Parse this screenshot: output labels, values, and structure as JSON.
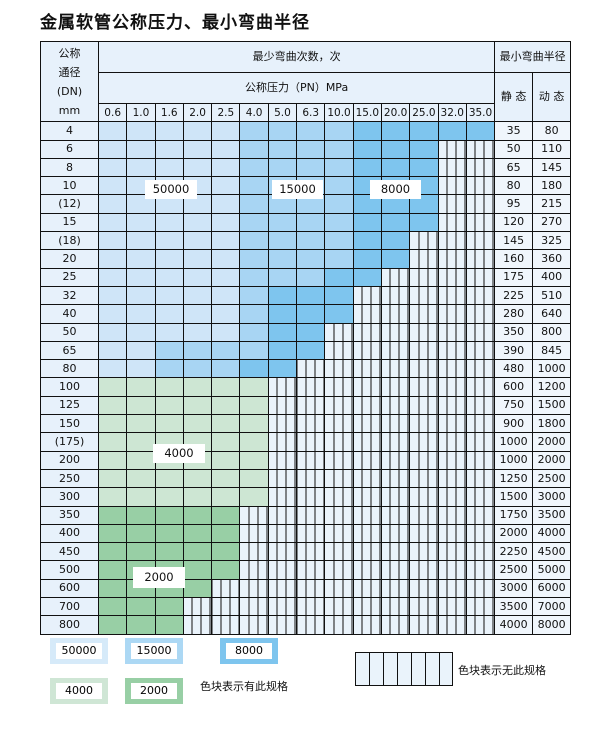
{
  "title": "金属软管公称压力、最小弯曲半径",
  "header": {
    "dn_lines": [
      "公称",
      "通径",
      "(DN)",
      "mm"
    ],
    "bend_count": "最少弯曲次数，次",
    "pressure": "公称压力（PN）MPa",
    "radius": "最小弯曲半径",
    "static": "静 态",
    "dynamic": "动 态",
    "pressures": [
      "0.6",
      "1.0",
      "1.6",
      "2.0",
      "2.5",
      "4.0",
      "5.0",
      "6.3",
      "10.0",
      "15.0",
      "20.0",
      "25.0",
      "32.0",
      "35.0"
    ]
  },
  "colors": {
    "L": "#cfe5f8",
    "M": "#a8d5f3",
    "D": "#7ec5ee",
    "G": "#cde6d3",
    "H": "#98cfa5"
  },
  "categories": {
    "L": "50000",
    "M": "15000",
    "D": "8000",
    "G": "4000",
    "H": "2000"
  },
  "rows": [
    {
      "dn": "4",
      "static": "35",
      "dynamic": "80",
      "cells": "LLLLLMMMMDDDDD"
    },
    {
      "dn": "6",
      "static": "50",
      "dynamic": "110",
      "cells": "LLLLLMMMMDDD"
    },
    {
      "dn": "8",
      "static": "65",
      "dynamic": "145",
      "cells": "LLLLLMMMMDDD"
    },
    {
      "dn": "10",
      "static": "80",
      "dynamic": "180",
      "cells": "LLLLLMMMMDDD"
    },
    {
      "dn": "(12)",
      "static": "95",
      "dynamic": "215",
      "cells": "LLLLLMMMMDDD"
    },
    {
      "dn": "15",
      "static": "120",
      "dynamic": "270",
      "cells": "LLLLLMMMMDDD"
    },
    {
      "dn": "(18)",
      "static": "145",
      "dynamic": "325",
      "cells": "LLLLLMMMMDD"
    },
    {
      "dn": "20",
      "static": "160",
      "dynamic": "360",
      "cells": "LLLLLMMMMDD"
    },
    {
      "dn": "25",
      "static": "175",
      "dynamic": "400",
      "cells": "LLLLLMMMDD"
    },
    {
      "dn": "32",
      "static": "225",
      "dynamic": "510",
      "cells": "LLLLLMDDD"
    },
    {
      "dn": "40",
      "static": "280",
      "dynamic": "640",
      "cells": "LLLLLMDDD"
    },
    {
      "dn": "50",
      "static": "350",
      "dynamic": "800",
      "cells": "LLLLLMDD"
    },
    {
      "dn": "65",
      "static": "390",
      "dynamic": "845",
      "cells": "LLMMMMDD"
    },
    {
      "dn": "80",
      "static": "480",
      "dynamic": "1000",
      "cells": "LLMMMDD"
    },
    {
      "dn": "100",
      "static": "600",
      "dynamic": "1200",
      "cells": "GGGGGG"
    },
    {
      "dn": "125",
      "static": "750",
      "dynamic": "1500",
      "cells": "GGGGGG"
    },
    {
      "dn": "150",
      "static": "900",
      "dynamic": "1800",
      "cells": "GGGGGG"
    },
    {
      "dn": "(175)",
      "static": "1000",
      "dynamic": "2000",
      "cells": "GGGGGG"
    },
    {
      "dn": "200",
      "static": "1000",
      "dynamic": "2000",
      "cells": "GGGGGG"
    },
    {
      "dn": "250",
      "static": "1250",
      "dynamic": "2500",
      "cells": "GGGGGG"
    },
    {
      "dn": "300",
      "static": "1500",
      "dynamic": "3000",
      "cells": "GGGGGG"
    },
    {
      "dn": "350",
      "static": "1750",
      "dynamic": "3500",
      "cells": "HHHHH"
    },
    {
      "dn": "400",
      "static": "2000",
      "dynamic": "4000",
      "cells": "HHHHH"
    },
    {
      "dn": "450",
      "static": "2250",
      "dynamic": "4500",
      "cells": "HHHHH"
    },
    {
      "dn": "500",
      "static": "2500",
      "dynamic": "5000",
      "cells": "HHHHH"
    },
    {
      "dn": "600",
      "static": "3000",
      "dynamic": "6000",
      "cells": "HHHH"
    },
    {
      "dn": "700",
      "static": "3500",
      "dynamic": "7000",
      "cells": "HHH"
    },
    {
      "dn": "800",
      "static": "4000",
      "dynamic": "8000",
      "cells": "HHH"
    }
  ],
  "region_labels": {
    "l": "50000",
    "m": "15000",
    "d": "8000",
    "g": "4000",
    "h": "2000"
  },
  "legend": {
    "items": [
      "50000",
      "15000",
      "8000",
      "4000",
      "2000"
    ],
    "has_spec": "色块表示有此规格",
    "no_spec": "色块表示无此规格"
  }
}
